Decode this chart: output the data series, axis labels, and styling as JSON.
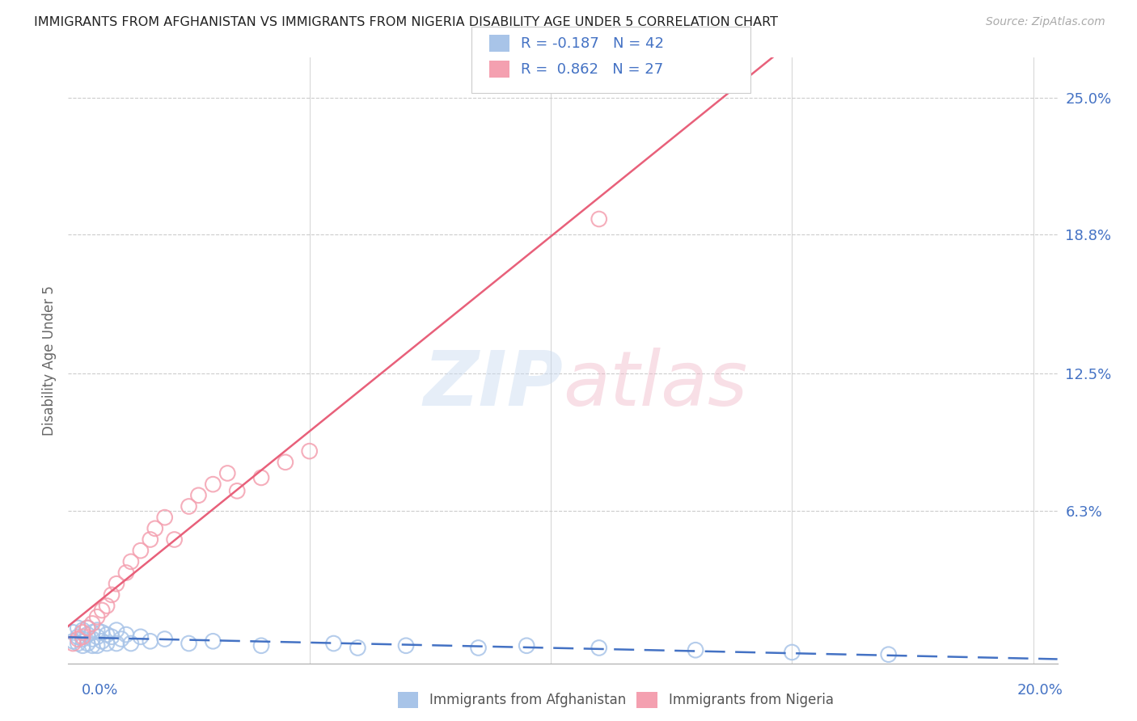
{
  "title": "IMMIGRANTS FROM AFGHANISTAN VS IMMIGRANTS FROM NIGERIA DISABILITY AGE UNDER 5 CORRELATION CHART",
  "source": "Source: ZipAtlas.com",
  "ylabel": "Disability Age Under 5",
  "watermark": "ZIPatlas",
  "xlim": [
    0.0,
    0.205
  ],
  "ylim": [
    -0.006,
    0.268
  ],
  "ytick_vals": [
    0.0,
    0.063,
    0.125,
    0.188,
    0.25
  ],
  "ytick_labels": [
    "",
    "6.3%",
    "12.5%",
    "18.8%",
    "25.0%"
  ],
  "afghanistan_color": "#a8c4e8",
  "nigeria_color": "#f4a0b0",
  "afghanistan_line_color": "#4472c4",
  "nigeria_line_color": "#e8607a",
  "blue_text_color": "#4472c4",
  "grid_color": "#cccccc",
  "afghanistan_x": [
    0.001,
    0.001,
    0.002,
    0.002,
    0.002,
    0.003,
    0.003,
    0.003,
    0.004,
    0.004,
    0.004,
    0.005,
    0.005,
    0.005,
    0.006,
    0.006,
    0.006,
    0.007,
    0.007,
    0.008,
    0.008,
    0.009,
    0.01,
    0.01,
    0.011,
    0.012,
    0.013,
    0.015,
    0.017,
    0.02,
    0.025,
    0.03,
    0.04,
    0.055,
    0.06,
    0.07,
    0.085,
    0.095,
    0.11,
    0.13,
    0.15,
    0.17
  ],
  "afghanistan_y": [
    0.008,
    0.004,
    0.01,
    0.006,
    0.003,
    0.009,
    0.005,
    0.002,
    0.01,
    0.007,
    0.003,
    0.008,
    0.005,
    0.002,
    0.009,
    0.006,
    0.002,
    0.008,
    0.004,
    0.007,
    0.003,
    0.006,
    0.009,
    0.003,
    0.005,
    0.007,
    0.003,
    0.006,
    0.004,
    0.005,
    0.003,
    0.004,
    0.002,
    0.003,
    0.001,
    0.002,
    0.001,
    0.002,
    0.001,
    0.0,
    -0.001,
    -0.002
  ],
  "nigeria_x": [
    0.001,
    0.002,
    0.003,
    0.003,
    0.004,
    0.005,
    0.006,
    0.007,
    0.008,
    0.009,
    0.01,
    0.012,
    0.013,
    0.015,
    0.017,
    0.018,
    0.02,
    0.022,
    0.025,
    0.027,
    0.03,
    0.033,
    0.035,
    0.04,
    0.045,
    0.05,
    0.11
  ],
  "nigeria_y": [
    0.003,
    0.005,
    0.006,
    0.008,
    0.01,
    0.012,
    0.015,
    0.018,
    0.02,
    0.025,
    0.03,
    0.035,
    0.04,
    0.045,
    0.05,
    0.055,
    0.06,
    0.05,
    0.065,
    0.07,
    0.075,
    0.08,
    0.072,
    0.078,
    0.085,
    0.09,
    0.195
  ]
}
